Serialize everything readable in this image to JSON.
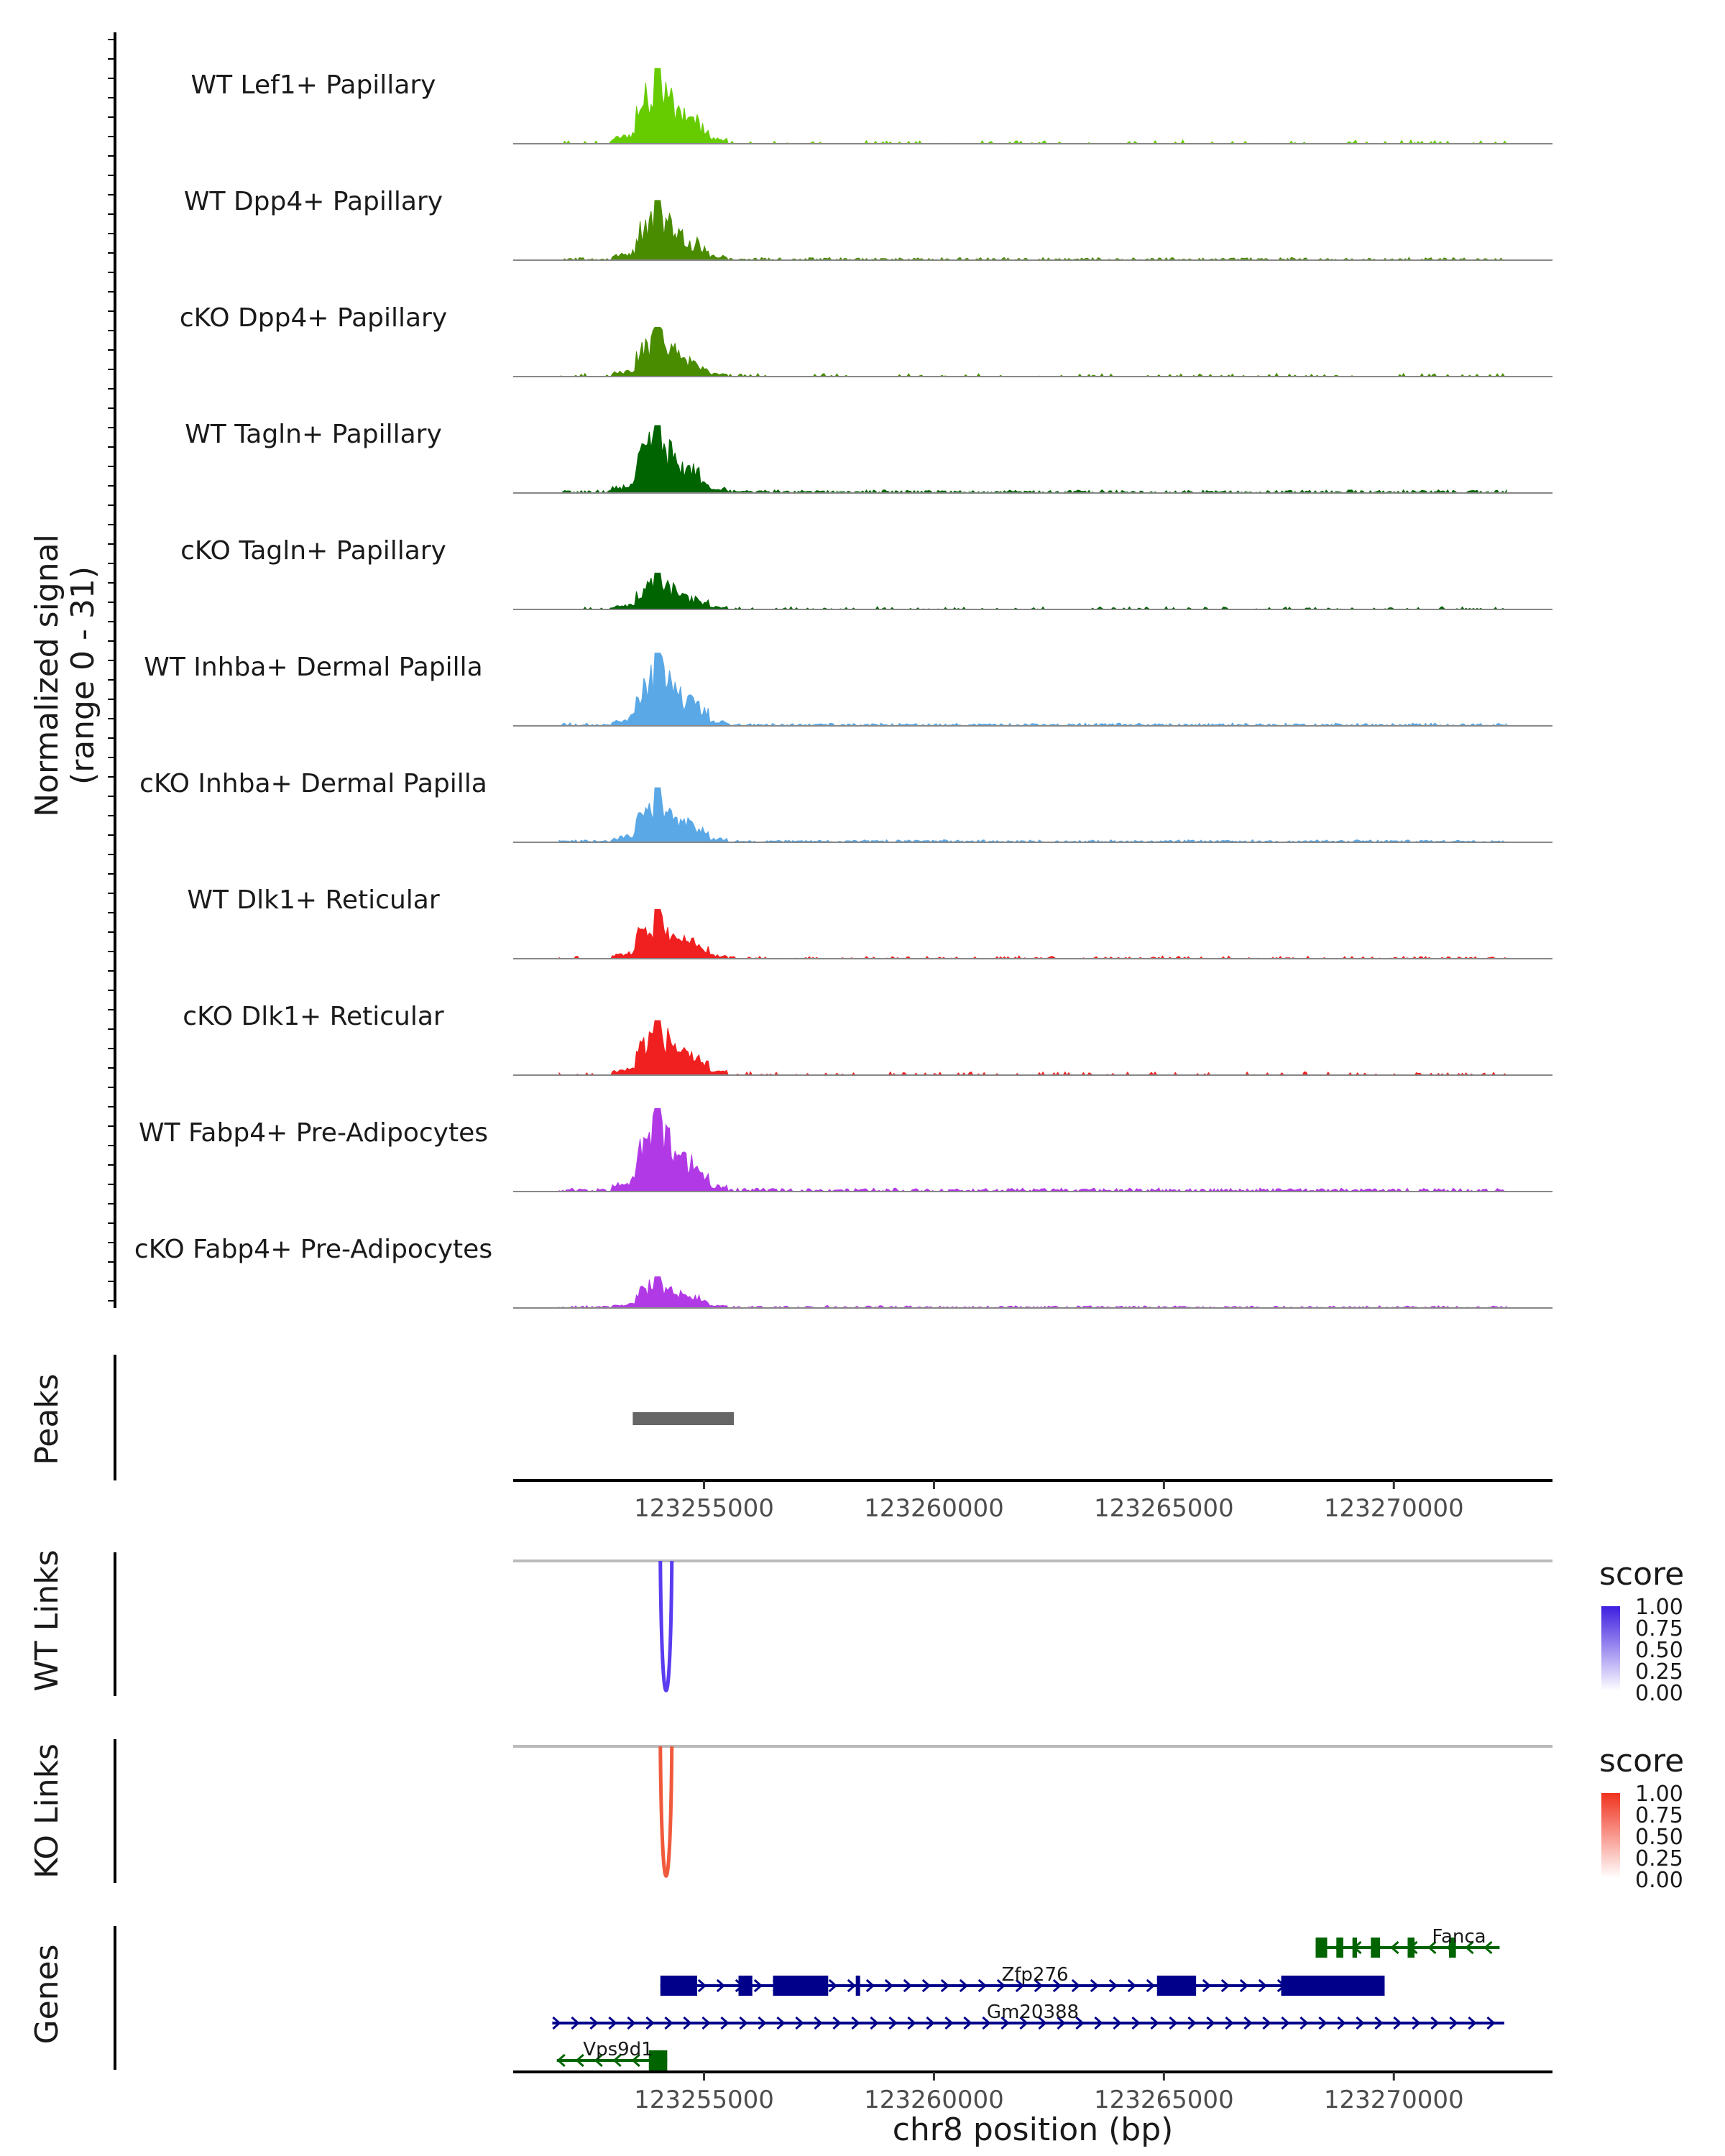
{
  "chart_data": {
    "type": "coverage-track",
    "chromosome": "chr8",
    "x_range": [
      123250850,
      123273450
    ],
    "xlabel": "chr8 position (bp)",
    "x_ticks": [
      123255000,
      123260000,
      123265000,
      123270000
    ],
    "coverage_ylabel": "Normalized signal",
    "coverage_range_note": "(range 0 - 31)",
    "y_range": [
      0,
      31
    ],
    "tracks": [
      {
        "name": "WT Lef1+ Papillary",
        "color": "#66cc00",
        "peak_height": 29,
        "noise": 0.22,
        "sparse": 0.85
      },
      {
        "name": "WT Dpp4+ Papillary",
        "color": "#4a8c00",
        "peak_height": 23,
        "noise": 0.18,
        "sparse": 0.45
      },
      {
        "name": "cKO Dpp4+ Papillary",
        "color": "#4a8c00",
        "peak_height": 19,
        "noise": 0.3,
        "sparse": 0.85
      },
      {
        "name": "WT Tagln+ Papillary",
        "color": "#006400",
        "peak_height": 26,
        "noise": 0.2,
        "sparse": 0.35
      },
      {
        "name": "cKO Tagln+ Papillary",
        "color": "#006400",
        "peak_height": 14,
        "noise": 0.3,
        "sparse": 0.75
      },
      {
        "name": "WT Inhba+ Dermal Papilla",
        "color": "#5aa8e6",
        "peak_height": 28,
        "noise": 0.16,
        "sparse": 0.35
      },
      {
        "name": "cKO Inhba+ Dermal Papilla",
        "color": "#5aa8e6",
        "peak_height": 21,
        "noise": 0.16,
        "sparse": 0.25
      },
      {
        "name": "WT Dlk1+ Reticular",
        "color": "#f02020",
        "peak_height": 19,
        "noise": 0.22,
        "sparse": 0.7
      },
      {
        "name": "cKO Dlk1+ Reticular",
        "color": "#f02020",
        "peak_height": 21,
        "noise": 0.28,
        "sparse": 0.8
      },
      {
        "name": "WT Fabp4+ Pre-Adipocytes",
        "color": "#b23ae6",
        "peak_height": 32,
        "noise": 0.2,
        "sparse": 0.3
      },
      {
        "name": "cKO Fabp4+ Pre-Adipocytes",
        "color": "#b23ae6",
        "peak_height": 12,
        "noise": 0.28,
        "sparse": 0.45
      }
    ],
    "peaks_label": "Peaks",
    "peaks": [
      {
        "start": 123253450,
        "end": 123255650
      }
    ],
    "links": [
      {
        "label": "WT Links",
        "color": "#5b3cf0",
        "legend_title": "score",
        "legend_ticks": [
          "1.00",
          "0.75",
          "0.50",
          "0.25",
          "0.00"
        ],
        "legend_color": "#3d1ee0",
        "start": 123254050,
        "end": 123254300,
        "score": 1.0
      },
      {
        "label": "KO Links",
        "color": "#f05a3c",
        "legend_title": "score",
        "legend_ticks": [
          "1.00",
          "0.75",
          "0.50",
          "0.25",
          "0.00"
        ],
        "legend_color": "#f0321e",
        "start": 123254050,
        "end": 123254300,
        "score": 0.75
      }
    ],
    "genes_label": "Genes",
    "genes": [
      {
        "name": "Fanca",
        "strand": "-",
        "color": "#006400",
        "start": 123268300,
        "end": 123272300,
        "exons": [
          [
            123268300,
            123268550
          ],
          [
            123268750,
            123268900
          ],
          [
            123269100,
            123269200
          ],
          [
            123269500,
            123269700
          ],
          [
            123270300,
            123270450
          ],
          [
            123271200,
            123271350
          ]
        ]
      },
      {
        "name": "Zfp276",
        "strand": "+",
        "color": "#00008b",
        "start": 123254050,
        "end": 123269800,
        "exons": [
          [
            123254050,
            123254850
          ],
          [
            123255750,
            123256050
          ],
          [
            123256500,
            123257700
          ],
          [
            123258300,
            123258350
          ],
          [
            123264850,
            123265700
          ],
          [
            123267550,
            123269800
          ]
        ]
      },
      {
        "name": "Gm20388",
        "strand": "+",
        "color": "#00008b",
        "start": 123251700,
        "end": 123272400,
        "exons": []
      },
      {
        "name": "Vps9d1",
        "strand": "-",
        "color": "#006400",
        "start": 123251800,
        "end": 123254200,
        "exons": [
          [
            123253800,
            123254200
          ]
        ]
      }
    ]
  }
}
